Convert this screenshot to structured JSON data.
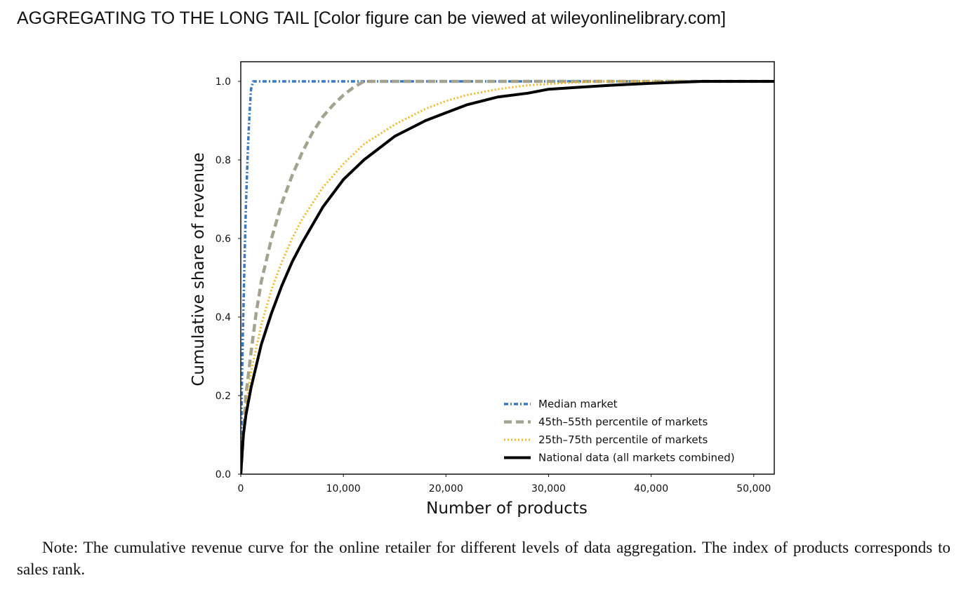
{
  "figure": {
    "title": "AGGREGATING TO THE LONG TAIL [Color figure can be viewed at wileyonlinelibrary.com]",
    "note": "Note: The cumulative revenue curve for the online retailer for different levels of data aggregation. The index of products corresponds to sales rank."
  },
  "chart_data": {
    "type": "line",
    "title": "",
    "xlabel": "Number of products",
    "ylabel": "Cumulative share of revenue",
    "xlim": [
      0,
      52000
    ],
    "ylim": [
      0,
      1.05
    ],
    "xticks": [
      0,
      10000,
      20000,
      30000,
      40000,
      50000
    ],
    "xtick_labels": [
      "0",
      "10,000",
      "20,000",
      "30,000",
      "40,000",
      "50,000"
    ],
    "yticks": [
      0.0,
      0.2,
      0.4,
      0.6,
      0.8,
      1.0
    ],
    "ytick_labels": [
      "0.0",
      "0.2",
      "0.4",
      "0.6",
      "0.8",
      "1.0"
    ],
    "grid": false,
    "legend_position": "lower-right",
    "series": [
      {
        "name": "Median market",
        "color": "#3a78c2",
        "style": "dashdot",
        "x": [
          0,
          100,
          200,
          300,
          400,
          500,
          600,
          700,
          800,
          900,
          1000,
          1100,
          1200,
          1500,
          52000
        ],
        "y": [
          0,
          0.22,
          0.35,
          0.47,
          0.58,
          0.68,
          0.76,
          0.83,
          0.89,
          0.94,
          0.98,
          0.99,
          1.0,
          1.0,
          1.0
        ]
      },
      {
        "name": "45th–55th percentile of markets",
        "color": "#a3a38f",
        "style": "dashed",
        "x": [
          0,
          500,
          1000,
          1500,
          2000,
          3000,
          4000,
          5000,
          6000,
          7000,
          8000,
          9000,
          10000,
          11000,
          12000,
          13000,
          52000
        ],
        "y": [
          0,
          0.2,
          0.31,
          0.41,
          0.49,
          0.6,
          0.69,
          0.76,
          0.82,
          0.87,
          0.91,
          0.94,
          0.965,
          0.985,
          1.0,
          1.0,
          1.0
        ]
      },
      {
        "name": "25th–75th percentile of markets",
        "color": "#f2b822",
        "style": "dotted",
        "x": [
          0,
          500,
          1000,
          2000,
          3000,
          4000,
          5000,
          6000,
          8000,
          10000,
          12000,
          15000,
          18000,
          20000,
          22000,
          25000,
          28000,
          31000,
          35000,
          40000,
          45000,
          52000
        ],
        "y": [
          0,
          0.17,
          0.26,
          0.38,
          0.47,
          0.54,
          0.6,
          0.65,
          0.73,
          0.79,
          0.84,
          0.89,
          0.93,
          0.95,
          0.965,
          0.98,
          0.99,
          0.995,
          1.0,
          1.0,
          1.0,
          1.0
        ]
      },
      {
        "name": "National data (all markets combined)",
        "color": "#000000",
        "style": "solid",
        "x": [
          0,
          250,
          500,
          1000,
          2000,
          3000,
          4000,
          5000,
          6000,
          8000,
          10000,
          12000,
          15000,
          18000,
          20000,
          22000,
          25000,
          28000,
          30000,
          33000,
          36000,
          40000,
          45000,
          52000
        ],
        "y": [
          0,
          0.1,
          0.15,
          0.22,
          0.33,
          0.41,
          0.48,
          0.54,
          0.59,
          0.68,
          0.75,
          0.8,
          0.86,
          0.9,
          0.92,
          0.94,
          0.96,
          0.97,
          0.98,
          0.985,
          0.99,
          0.995,
          1.0,
          1.0
        ]
      }
    ]
  }
}
